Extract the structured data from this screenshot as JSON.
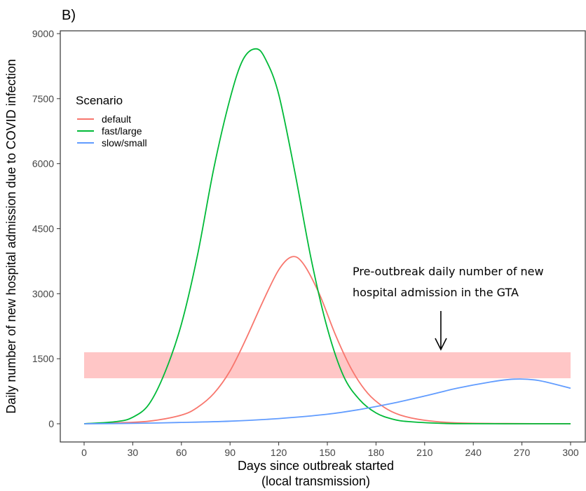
{
  "panel_label": "B)",
  "chart_data": {
    "type": "line",
    "xlabel": [
      "Days since outbreak started",
      "(local transmission)"
    ],
    "ylabel": "Daily number of new hospital admission due to COVID infection",
    "xlim": [
      0,
      300
    ],
    "ylim": [
      0,
      9000
    ],
    "x_ticks": [
      "0",
      "30",
      "60",
      "90",
      "120",
      "150",
      "180",
      "210",
      "240",
      "270",
      "300"
    ],
    "y_ticks": [
      "0",
      "1500",
      "3000",
      "4500",
      "6000",
      "7500",
      "9000"
    ],
    "grid": false,
    "legend": {
      "title": "Scenario",
      "placement": "top-left",
      "entries": [
        "default",
        "fast/large",
        "slow/small"
      ]
    },
    "series": [
      {
        "name": "default",
        "color": "#F8766D",
        "x": [
          0,
          20,
          40,
          60,
          70,
          80,
          90,
          100,
          110,
          120,
          128,
          135,
          145,
          155,
          165,
          175,
          185,
          195,
          210,
          230,
          260,
          300
        ],
        "y": [
          0,
          20,
          60,
          200,
          380,
          700,
          1220,
          1970,
          2800,
          3550,
          3850,
          3700,
          3000,
          2050,
          1250,
          700,
          380,
          200,
          80,
          20,
          5,
          0
        ]
      },
      {
        "name": "fast/large",
        "color": "#00BA38",
        "x": [
          0,
          20,
          30,
          40,
          50,
          60,
          70,
          80,
          90,
          98,
          106,
          112,
          120,
          130,
          140,
          150,
          160,
          170,
          180,
          190,
          200,
          220,
          240,
          270,
          300
        ],
        "y": [
          0,
          50,
          150,
          450,
          1200,
          2300,
          3900,
          5900,
          7500,
          8400,
          8650,
          8400,
          7600,
          5800,
          3800,
          2200,
          1100,
          550,
          250,
          110,
          50,
          10,
          2,
          0,
          0
        ]
      },
      {
        "name": "slow/small",
        "color": "#619CFF",
        "x": [
          0,
          30,
          60,
          90,
          120,
          150,
          170,
          190,
          210,
          230,
          250,
          265,
          280,
          300
        ],
        "y": [
          0,
          10,
          30,
          60,
          120,
          220,
          330,
          470,
          640,
          820,
          960,
          1030,
          1000,
          820
        ]
      }
    ],
    "band": {
      "y_low": 1050,
      "y_high": 1650,
      "x_start": 0,
      "x_end": 300,
      "color": "#FFC6C6"
    },
    "annotation": {
      "lines": [
        "Pre-outbreak daily number of new",
        "hospital admission in the GTA"
      ],
      "arrow_x": 220
    }
  }
}
